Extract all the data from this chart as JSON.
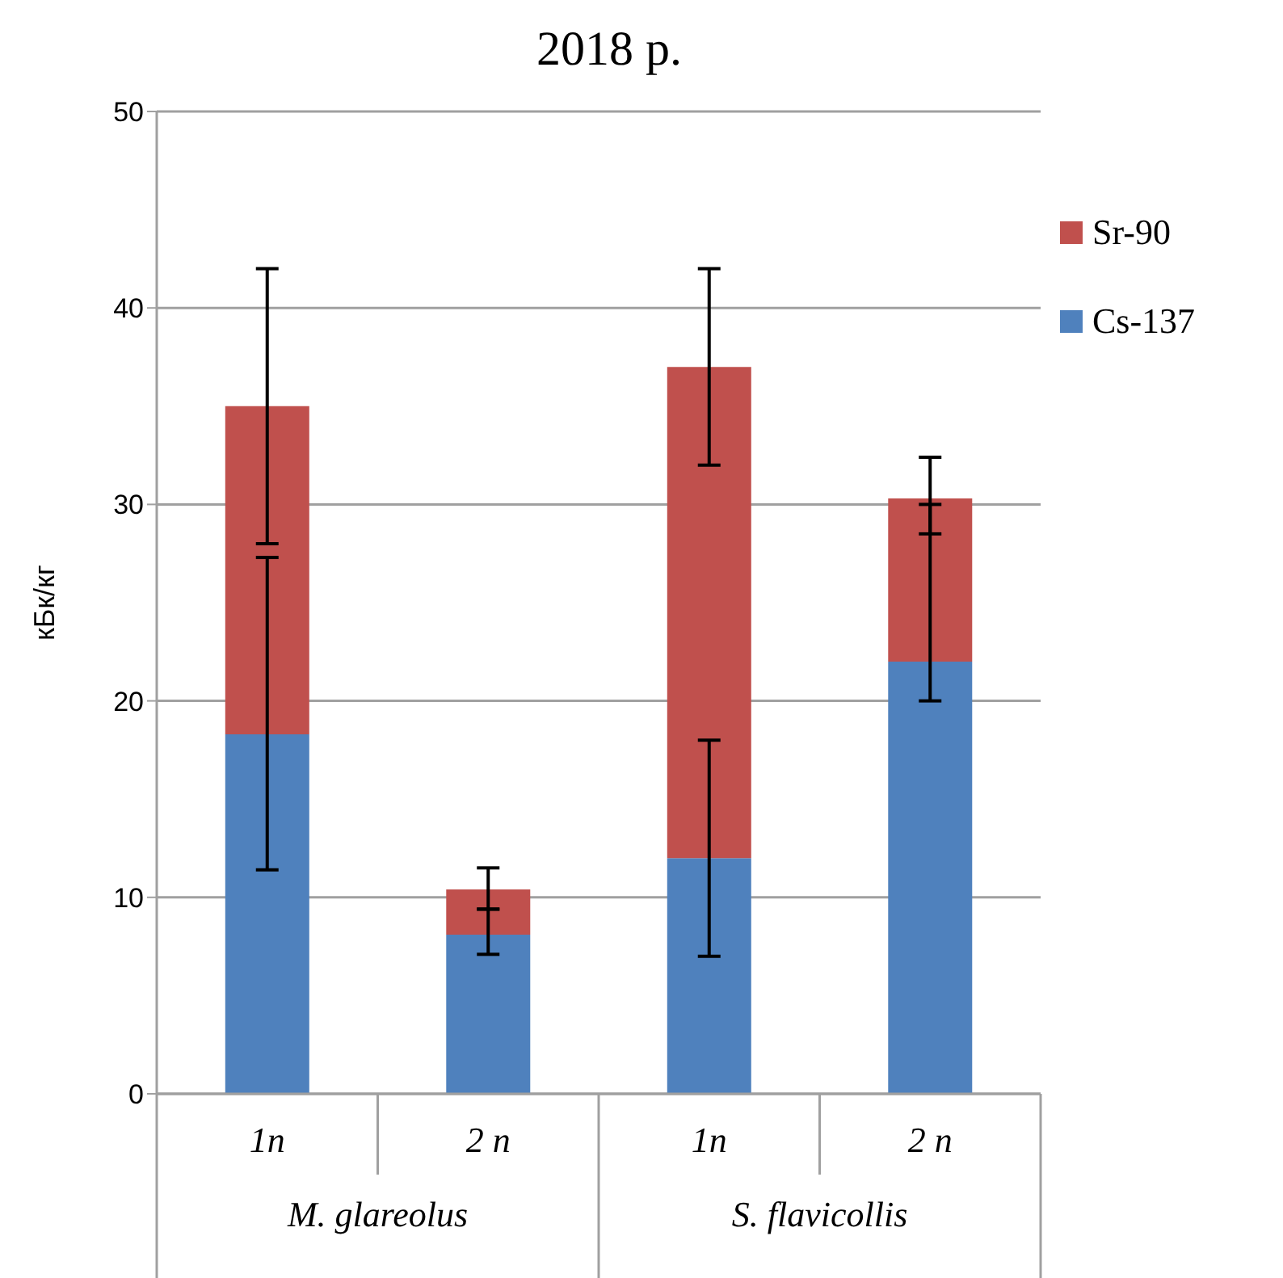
{
  "chart_data": {
    "type": "bar",
    "title": "2018 р.",
    "ylabel": "кБк/кг",
    "categories": [
      "1n",
      "2 n",
      "1n",
      "2 n"
    ],
    "annotations": [
      "M. glareolus",
      "S. flavicollis"
    ],
    "stacked": true,
    "ylim": [
      0,
      50
    ],
    "yticks": [
      0,
      10,
      20,
      30,
      40,
      50
    ],
    "grid": "y",
    "legend": "top right",
    "series": [
      {
        "name": "Cs-137",
        "color": "#4f81bd",
        "values": [
          18.3,
          8.1,
          12.0,
          22.0
        ],
        "errors": [
          [
            11.4,
            27.3
          ],
          [
            7.1,
            9.4
          ],
          [
            7.0,
            18.0
          ],
          [
            20.0,
            30.0
          ]
        ]
      },
      {
        "name": "Sr-90",
        "color": "#c0504d",
        "values": [
          16.7,
          2.3,
          25.0,
          8.3
        ],
        "errors": [
          [
            28.0,
            42.0
          ],
          [
            9.4,
            11.5
          ],
          [
            32.0,
            42.0
          ],
          [
            28.5,
            32.4
          ]
        ]
      }
    ]
  }
}
